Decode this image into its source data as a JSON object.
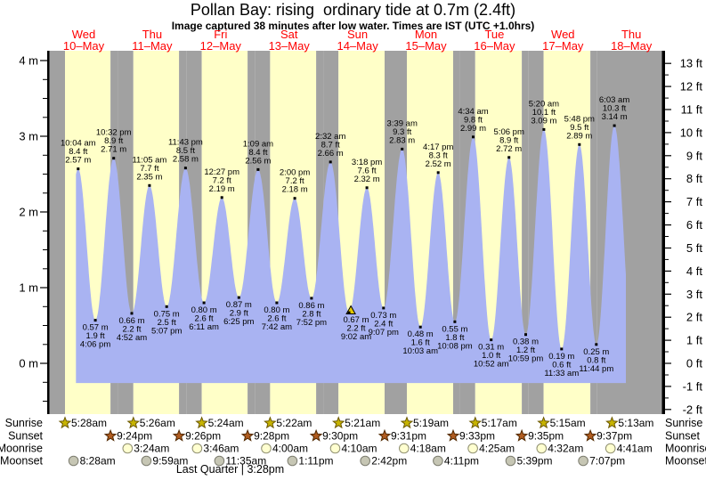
{
  "title": "Pollan Bay: rising  ordinary tide at 0.7m (2.4ft)",
  "subtitle": "Image captured 38 minutes after low water. Times are IST (UTC +1.0hrs)",
  "moon_phase": "Last Quarter | 3:28pm",
  "colors": {
    "background": "#ffffff",
    "daylight": "#ffffc8",
    "night": "#a1a1a1",
    "water": "#a9b3f2",
    "day_header": "#ff0000",
    "text": "#000000",
    "marker_fill": "#e3c800",
    "sunrise_star_fill": "#c7b400",
    "sunrise_star_stroke": "#6b5800",
    "sunset_star_fill": "#b05c20",
    "sunset_star_stroke": "#502800",
    "moonrise_fill": "#ffffd0",
    "moonrise_stroke": "#8f8f70",
    "moonset_fill": "#c6c6b4",
    "moonset_stroke": "#7d7d70"
  },
  "chart_data": {
    "type": "area",
    "title": "Pollan Bay tide heights",
    "left_axis": {
      "unit": "m",
      "majors": [
        0,
        1,
        2,
        3,
        4
      ],
      "minor_step": 0.25,
      "minor_range": [
        -0.5,
        4
      ]
    },
    "right_axis": {
      "unit": "ft",
      "majors": [
        -2,
        -1,
        0,
        1,
        2,
        3,
        4,
        5,
        6,
        7,
        8,
        9,
        10,
        11,
        12,
        13
      ],
      "minor_step": 0.5
    },
    "days": [
      {
        "name": "Wed",
        "date": "10–May",
        "sunrise": "5:28am",
        "sunset": "9:24pm",
        "moonrise": null,
        "moonset": "8:28am",
        "daylight_band": true
      },
      {
        "name": "Thu",
        "date": "11–May",
        "sunrise": "5:26am",
        "sunset": "9:26pm",
        "moonrise": "3:24am",
        "moonset": "9:59am",
        "daylight_band": true
      },
      {
        "name": "Fri",
        "date": "12–May",
        "sunrise": "5:24am",
        "sunset": "9:28pm",
        "moonrise": "3:46am",
        "moonset": "11:35am",
        "daylight_band": true
      },
      {
        "name": "Sat",
        "date": "13–May",
        "sunrise": "5:22am",
        "sunset": "9:30pm",
        "moonrise": "4:00am",
        "moonset": "1:11pm",
        "daylight_band": true
      },
      {
        "name": "Sun",
        "date": "14–May",
        "sunrise": "5:21am",
        "sunset": "9:31pm",
        "moonrise": "4:10am",
        "moonset": "2:42pm",
        "daylight_band": true
      },
      {
        "name": "Mon",
        "date": "15–May",
        "sunrise": "5:19am",
        "sunset": "9:33pm",
        "moonrise": "4:18am",
        "moonset": "4:11pm",
        "daylight_band": true
      },
      {
        "name": "Tue",
        "date": "16–May",
        "sunrise": "5:17am",
        "sunset": "9:35pm",
        "moonrise": "4:25am",
        "moonset": "5:39pm",
        "daylight_band": true
      },
      {
        "name": "Wed",
        "date": "17–May",
        "sunrise": "5:15am",
        "sunset": "9:37pm",
        "moonrise": "4:32am",
        "moonset": "7:07pm",
        "daylight_band": true
      },
      {
        "name": "Thu",
        "date": "18–May",
        "sunrise": "5:13am",
        "sunset": null,
        "moonrise": "4:41am",
        "moonset": null,
        "daylight_band": false
      }
    ],
    "tides": [
      {
        "kind": "high",
        "day": 0,
        "time": "10:04 am",
        "height_m": 2.57,
        "height_ft": "8.4 ft"
      },
      {
        "kind": "low",
        "day": 0,
        "time": "4:06 pm",
        "height_m": 0.57,
        "height_ft": "1.9 ft"
      },
      {
        "kind": "high",
        "day": 0,
        "time": "10:32 pm",
        "height_m": 2.71,
        "height_ft": "8.9 ft"
      },
      {
        "kind": "low",
        "day": 1,
        "time": "4:52 am",
        "height_m": 0.66,
        "height_ft": "2.2 ft"
      },
      {
        "kind": "high",
        "day": 1,
        "time": "11:05 am",
        "height_m": 2.35,
        "height_ft": "7.7 ft"
      },
      {
        "kind": "low",
        "day": 1,
        "time": "5:07 pm",
        "height_m": 0.75,
        "height_ft": "2.5 ft"
      },
      {
        "kind": "high",
        "day": 1,
        "time": "11:43 pm",
        "height_m": 2.58,
        "height_ft": "8.5 ft"
      },
      {
        "kind": "low",
        "day": 2,
        "time": "6:11 am",
        "height_m": 0.8,
        "height_ft": "2.6 ft"
      },
      {
        "kind": "high",
        "day": 2,
        "time": "12:27 pm",
        "height_m": 2.19,
        "height_ft": "7.2 ft"
      },
      {
        "kind": "low",
        "day": 2,
        "time": "6:25 pm",
        "height_m": 0.87,
        "height_ft": "2.9 ft"
      },
      {
        "kind": "high",
        "day": 3,
        "time": "1:09 am",
        "height_m": 2.56,
        "height_ft": "8.4 ft"
      },
      {
        "kind": "low",
        "day": 3,
        "time": "7:42 am",
        "height_m": 0.8,
        "height_ft": "2.6 ft"
      },
      {
        "kind": "high",
        "day": 3,
        "time": "2:00 pm",
        "height_m": 2.18,
        "height_ft": "7.2 ft"
      },
      {
        "kind": "low",
        "day": 3,
        "time": "7:52 pm",
        "height_m": 0.86,
        "height_ft": "2.8 ft"
      },
      {
        "kind": "high",
        "day": 4,
        "time": "2:32 am",
        "height_m": 2.66,
        "height_ft": "8.7 ft"
      },
      {
        "kind": "low",
        "day": 4,
        "time": "9:02 am",
        "height_m": 0.67,
        "height_ft": "2.2 ft",
        "label_dx": 8
      },
      {
        "kind": "high",
        "day": 4,
        "time": "3:18 pm",
        "height_m": 2.32,
        "height_ft": "7.6 ft"
      },
      {
        "kind": "low",
        "day": 4,
        "time": "9:07 pm",
        "height_m": 0.73,
        "height_ft": "2.4 ft"
      },
      {
        "kind": "high",
        "day": 5,
        "time": "3:39 am",
        "height_m": 2.83,
        "height_ft": "9.3 ft"
      },
      {
        "kind": "low",
        "day": 5,
        "time": "10:03 am",
        "height_m": 0.48,
        "height_ft": "1.6 ft"
      },
      {
        "kind": "high",
        "day": 5,
        "time": "4:17 pm",
        "height_m": 2.52,
        "height_ft": "8.3 ft"
      },
      {
        "kind": "low",
        "day": 5,
        "time": "10:08 pm",
        "height_m": 0.55,
        "height_ft": "1.8 ft"
      },
      {
        "kind": "high",
        "day": 6,
        "time": "4:34 am",
        "height_m": 2.99,
        "height_ft": "9.8 ft"
      },
      {
        "kind": "low",
        "day": 6,
        "time": "10:52 am",
        "height_m": 0.31,
        "height_ft": "1.0 ft"
      },
      {
        "kind": "high",
        "day": 6,
        "time": "5:06 pm",
        "height_m": 2.72,
        "height_ft": "8.9 ft"
      },
      {
        "kind": "low",
        "day": 6,
        "time": "10:59 pm",
        "height_m": 0.38,
        "height_ft": "1.2 ft"
      },
      {
        "kind": "high",
        "day": 7,
        "time": "5:20 am",
        "height_m": 3.09,
        "height_ft": "10.1 ft"
      },
      {
        "kind": "low",
        "day": 7,
        "time": "11:33 am",
        "height_m": 0.19,
        "height_ft": "0.6 ft"
      },
      {
        "kind": "high",
        "day": 7,
        "time": "5:48 pm",
        "height_m": 2.89,
        "height_ft": "9.5 ft"
      },
      {
        "kind": "low",
        "day": 7,
        "time": "11:44 pm",
        "height_m": 0.25,
        "height_ft": "0.8 ft"
      },
      {
        "kind": "high",
        "day": 8,
        "time": "6:03 am",
        "height_m": 3.14,
        "height_ft": "10.3 ft"
      }
    ],
    "marker": {
      "day": 4,
      "time": "9:40 am",
      "height_m": 0.7
    },
    "curve_edges": {
      "start": {
        "t": 0.161,
        "h": 0.6
      },
      "end": {
        "t": 8.52,
        "h": 0.3
      },
      "x_clip": [
        85,
        703
      ],
      "base_m": -0.26
    }
  },
  "astro_rows": [
    {
      "label": "Sunrise",
      "icon": "sunrise-star-icon",
      "field": "sunrise"
    },
    {
      "label": "Sunset",
      "icon": "sunset-star-icon",
      "field": "sunset"
    },
    {
      "label": "Moonrise",
      "icon": "moonrise-icon",
      "field": "moonrise"
    },
    {
      "label": "Moonset",
      "icon": "moonset-icon",
      "field": "moonset"
    }
  ]
}
